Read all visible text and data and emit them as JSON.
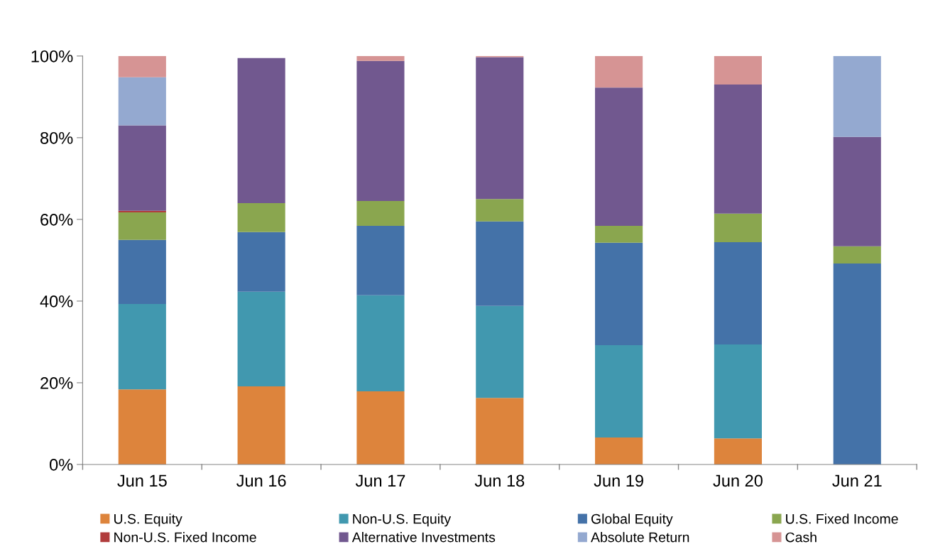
{
  "chart_data": {
    "type": "bar",
    "stacked": true,
    "categories": [
      "Jun 15",
      "Jun 16",
      "Jun 17",
      "Jun 18",
      "Jun 19",
      "Jun 20",
      "Jun 21"
    ],
    "series": [
      {
        "name": "U.S. Equity",
        "color": "#dd843c",
        "values": [
          18.4,
          19.1,
          17.9,
          16.3,
          6.6,
          6.4,
          0
        ]
      },
      {
        "name": "Non-U.S. Equity",
        "color": "#4198af",
        "values": [
          20.9,
          23.2,
          23.5,
          22.5,
          22.6,
          23.0,
          0
        ]
      },
      {
        "name": "Global Equity",
        "color": "#4472a8",
        "values": [
          15.7,
          14.6,
          17.0,
          20.7,
          25.1,
          25.0,
          49.2
        ]
      },
      {
        "name": "U.S. Fixed Income",
        "color": "#8aa64f",
        "values": [
          6.7,
          7.1,
          6.1,
          5.5,
          4.1,
          7.0,
          4.2
        ]
      },
      {
        "name": "Non-U.S. Fixed Income",
        "color": "#b13c3c",
        "values": [
          0.4,
          0,
          0,
          0,
          0,
          0,
          0
        ]
      },
      {
        "name": "Alternative Investments",
        "color": "#71588f",
        "values": [
          20.9,
          35.5,
          34.3,
          34.7,
          33.9,
          31.6,
          26.8
        ]
      },
      {
        "name": "Absolute Return",
        "color": "#94a9d0",
        "values": [
          11.8,
          0,
          0,
          0,
          0,
          0,
          19.8
        ]
      },
      {
        "name": "Cash",
        "color": "#d69494",
        "values": [
          5.2,
          0,
          1.2,
          0.3,
          7.7,
          7.0,
          0
        ]
      }
    ],
    "ylim": [
      0,
      100
    ],
    "yticks": [
      {
        "value": 0,
        "label": "0%"
      },
      {
        "value": 20,
        "label": "20%"
      },
      {
        "value": 40,
        "label": "40%"
      },
      {
        "value": 60,
        "label": "60%"
      },
      {
        "value": 80,
        "label": "80%"
      },
      {
        "value": 100,
        "label": "100%"
      }
    ],
    "grid": false,
    "legend": "bottom"
  }
}
